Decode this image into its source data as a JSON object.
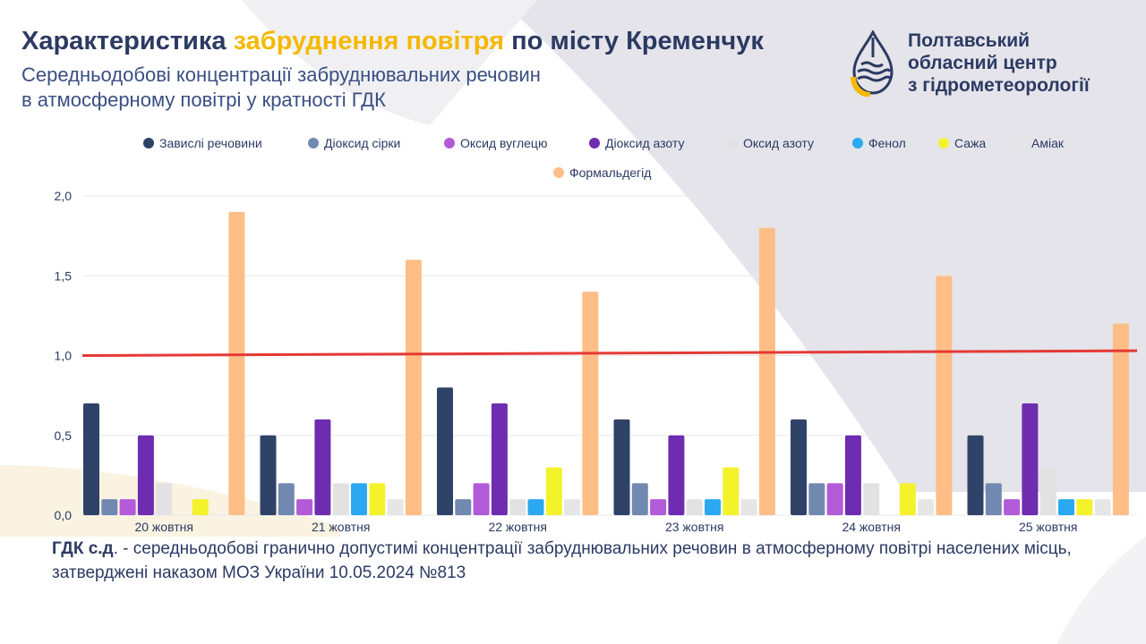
{
  "header": {
    "title_before": "Характеристика ",
    "title_highlight": "забруднення повітря",
    "title_after": " по місту Кременчук",
    "subtitle_line1": "Середньодобові концентрації забруднювальних речовин",
    "subtitle_line2": "в атмосферному повітрі у кратності ГДК"
  },
  "org": {
    "line1": "Полтавський",
    "line2": "обласний центр",
    "line3": "з гідрометеорології",
    "logo_icon": "drop-logo-icon"
  },
  "colors": {
    "title": "#2c3a63",
    "highlight": "#f5b800",
    "threshold": "#e53935",
    "grid": "#e8e8ee",
    "axis_text": "#2c3a63"
  },
  "chart_data": {
    "type": "bar",
    "title": "",
    "xlabel": "",
    "ylabel": "",
    "ylim": [
      0,
      2.0
    ],
    "yticks": [
      "0,0",
      "0,5",
      "1,0",
      "1,5",
      "2,0"
    ],
    "ytick_values": [
      0,
      0.5,
      1.0,
      1.5,
      2.0
    ],
    "legend_position": "top",
    "categories": [
      "20 жовтня",
      "21 жовтня",
      "22 жовтня",
      "23 жовтня",
      "24 жовтня",
      "25 жовтня"
    ],
    "series": [
      {
        "name": "Завислі речовини",
        "color": "#2f4368",
        "values": [
          0.7,
          0.5,
          0.8,
          0.6,
          0.6,
          0.5
        ]
      },
      {
        "name": "Діоксид сірки",
        "color": "#7189b0",
        "values": [
          0.1,
          0.2,
          0.1,
          0.2,
          0.2,
          0.2
        ]
      },
      {
        "name": "Оксид вуглецю",
        "color": "#b25ad8",
        "values": [
          0.1,
          0.1,
          0.2,
          0.1,
          0.2,
          0.1
        ]
      },
      {
        "name": "Діоксид азоту",
        "color": "#6e2db0",
        "values": [
          0.5,
          0.6,
          0.7,
          0.5,
          0.5,
          0.7
        ]
      },
      {
        "name": "Оксид азоту",
        "color": "#e2e2e2",
        "values": [
          0.2,
          0.2,
          0.1,
          0.1,
          0.2,
          0.3
        ]
      },
      {
        "name": "Фенол",
        "color": "#2aa8f0",
        "values": [
          0,
          0.2,
          0.1,
          0.1,
          0,
          0.1
        ]
      },
      {
        "name": "Сажа",
        "color": "#f4f22b",
        "values": [
          0.1,
          0.2,
          0.3,
          0.3,
          0.2,
          0.1
        ]
      },
      {
        "name": "Аміак",
        "color": "#e6e6e6",
        "values": [
          0,
          0.1,
          0.1,
          0.1,
          0.1,
          0.1
        ]
      },
      {
        "name": "Формальдегід",
        "color": "#ffbe87",
        "values": [
          1.9,
          1.6,
          1.4,
          1.8,
          1.5,
          1.2
        ]
      }
    ],
    "threshold": {
      "value": 1.0,
      "value_end": 1.03,
      "color": "#e53935"
    }
  },
  "note": {
    "term": "ГДК с.д",
    "text": ". - середньодобові гранично допустимі концентрації забруднювальних речовин в атмосферному повітрі населених місць, затверджені наказом МОЗ України 10.05.2024 №813"
  }
}
